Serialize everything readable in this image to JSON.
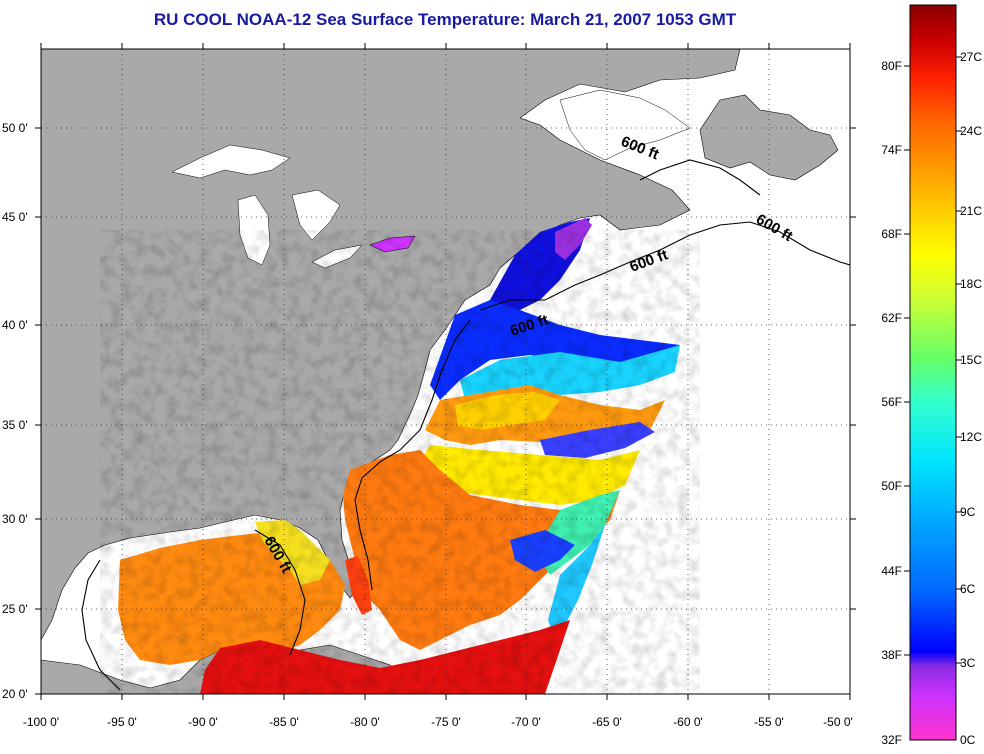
{
  "title": "RU COOL  NOAA-12  Sea Surface Temperature:  March 21, 2007 1053 GMT",
  "map": {
    "lon_labels": [
      "-100 0'",
      "-95 0'",
      "-90 0'",
      "-85 0'",
      "-80 0'",
      "-75 0'",
      "-70 0'",
      "-65 0'",
      "-60 0'",
      "-55 0'",
      "-50 0'"
    ],
    "lat_labels": [
      "50 0'",
      "45 0'",
      "40 0'",
      "35 0'",
      "30 0'",
      "25 0'",
      "20 0'"
    ],
    "contour_label": "600 ft",
    "colors": {
      "land": "#a9a9a9",
      "no_data": "#ffffff",
      "lakes": "#ffffff",
      "border": "#000000"
    }
  },
  "colorbar": {
    "fahrenheit_labels": [
      "80F",
      "74F",
      "68F",
      "62F",
      "56F",
      "50F",
      "44F",
      "38F",
      "32F"
    ],
    "celsius_labels": [
      "27C",
      "24C",
      "21C",
      "18C",
      "15C",
      "12C",
      "9C",
      "6C",
      "3C",
      "0C"
    ],
    "gradient": [
      "#ff33cc",
      "#cc33ff",
      "#8a2be2",
      "#0000ff",
      "#0066ff",
      "#00aaff",
      "#00e5ff",
      "#33ffcc",
      "#66ff66",
      "#ccff33",
      "#ffff00",
      "#ffcc00",
      "#ff9900",
      "#ff6600",
      "#ff2200",
      "#e00000",
      "#b00000",
      "#8b0000"
    ]
  }
}
